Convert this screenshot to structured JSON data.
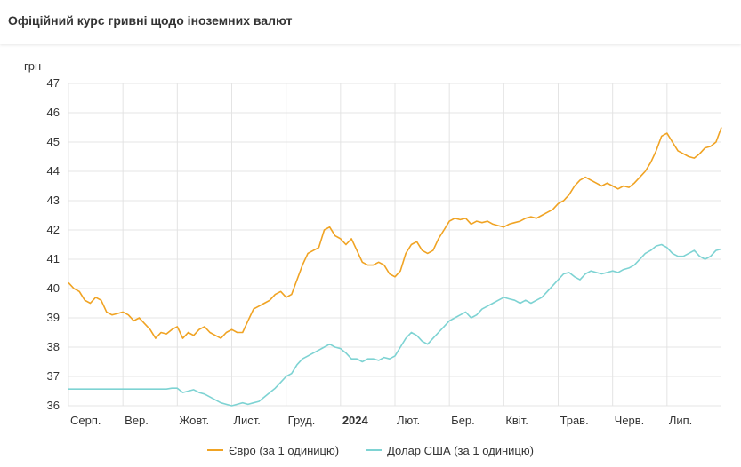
{
  "header": {
    "title": "Офіційний курс гривні щодо іноземних валют"
  },
  "colors": {
    "euro": "#F0A323",
    "usd": "#7ED3D3",
    "grid": "#e4e4e4"
  },
  "chart_data": {
    "type": "line",
    "title": "Офіційний курс гривні щодо іноземних валют",
    "ylabel": "грн",
    "xlabel": "",
    "ylim": [
      36,
      47
    ],
    "yticks": [
      36,
      37,
      38,
      39,
      40,
      41,
      42,
      43,
      44,
      45,
      46,
      47
    ],
    "xlim": [
      0,
      12
    ],
    "grid": true,
    "legend_position": "bottom",
    "month_labels": [
      {
        "x": 0,
        "label": "Серп.",
        "bold": false
      },
      {
        "x": 1,
        "label": "Вер.",
        "bold": false
      },
      {
        "x": 2,
        "label": "Жовт.",
        "bold": false
      },
      {
        "x": 3,
        "label": "Лист.",
        "bold": false
      },
      {
        "x": 4,
        "label": "Груд.",
        "bold": false
      },
      {
        "x": 5,
        "label": "2024",
        "bold": true
      },
      {
        "x": 6,
        "label": "Лют.",
        "bold": false
      },
      {
        "x": 7,
        "label": "Бер.",
        "bold": false
      },
      {
        "x": 8,
        "label": "Квіт.",
        "bold": false
      },
      {
        "x": 9,
        "label": "Трав.",
        "bold": false
      },
      {
        "x": 10,
        "label": "Черв.",
        "bold": false
      },
      {
        "x": 11,
        "label": "Лип.",
        "bold": false
      }
    ],
    "series": [
      {
        "name": "Євро (за 1 одиницю)",
        "key": "euro",
        "points": [
          [
            0.0,
            40.2
          ],
          [
            0.1,
            40.0
          ],
          [
            0.2,
            39.9
          ],
          [
            0.3,
            39.6
          ],
          [
            0.4,
            39.5
          ],
          [
            0.5,
            39.7
          ],
          [
            0.6,
            39.6
          ],
          [
            0.7,
            39.2
          ],
          [
            0.8,
            39.1
          ],
          [
            0.9,
            39.15
          ],
          [
            1.0,
            39.2
          ],
          [
            1.1,
            39.1
          ],
          [
            1.2,
            38.9
          ],
          [
            1.3,
            39.0
          ],
          [
            1.4,
            38.8
          ],
          [
            1.5,
            38.6
          ],
          [
            1.6,
            38.3
          ],
          [
            1.7,
            38.5
          ],
          [
            1.8,
            38.45
          ],
          [
            1.9,
            38.6
          ],
          [
            2.0,
            38.7
          ],
          [
            2.1,
            38.3
          ],
          [
            2.2,
            38.5
          ],
          [
            2.3,
            38.4
          ],
          [
            2.4,
            38.6
          ],
          [
            2.5,
            38.7
          ],
          [
            2.6,
            38.5
          ],
          [
            2.7,
            38.4
          ],
          [
            2.8,
            38.3
          ],
          [
            2.9,
            38.5
          ],
          [
            3.0,
            38.6
          ],
          [
            3.1,
            38.5
          ],
          [
            3.2,
            38.5
          ],
          [
            3.3,
            38.9
          ],
          [
            3.4,
            39.3
          ],
          [
            3.5,
            39.4
          ],
          [
            3.6,
            39.5
          ],
          [
            3.7,
            39.6
          ],
          [
            3.8,
            39.8
          ],
          [
            3.9,
            39.9
          ],
          [
            4.0,
            39.7
          ],
          [
            4.1,
            39.8
          ],
          [
            4.2,
            40.3
          ],
          [
            4.3,
            40.8
          ],
          [
            4.4,
            41.2
          ],
          [
            4.5,
            41.3
          ],
          [
            4.6,
            41.4
          ],
          [
            4.7,
            42.0
          ],
          [
            4.8,
            42.1
          ],
          [
            4.9,
            41.8
          ],
          [
            5.0,
            41.7
          ],
          [
            5.1,
            41.5
          ],
          [
            5.2,
            41.7
          ],
          [
            5.3,
            41.3
          ],
          [
            5.4,
            40.9
          ],
          [
            5.5,
            40.8
          ],
          [
            5.6,
            40.8
          ],
          [
            5.7,
            40.9
          ],
          [
            5.8,
            40.8
          ],
          [
            5.9,
            40.5
          ],
          [
            6.0,
            40.4
          ],
          [
            6.1,
            40.6
          ],
          [
            6.2,
            41.2
          ],
          [
            6.3,
            41.5
          ],
          [
            6.4,
            41.6
          ],
          [
            6.5,
            41.3
          ],
          [
            6.6,
            41.2
          ],
          [
            6.7,
            41.3
          ],
          [
            6.8,
            41.7
          ],
          [
            6.9,
            42.0
          ],
          [
            7.0,
            42.3
          ],
          [
            7.1,
            42.4
          ],
          [
            7.2,
            42.35
          ],
          [
            7.3,
            42.4
          ],
          [
            7.4,
            42.2
          ],
          [
            7.5,
            42.3
          ],
          [
            7.6,
            42.25
          ],
          [
            7.7,
            42.3
          ],
          [
            7.8,
            42.2
          ],
          [
            7.9,
            42.15
          ],
          [
            8.0,
            42.1
          ],
          [
            8.1,
            42.2
          ],
          [
            8.2,
            42.25
          ],
          [
            8.3,
            42.3
          ],
          [
            8.4,
            42.4
          ],
          [
            8.5,
            42.45
          ],
          [
            8.6,
            42.4
          ],
          [
            8.7,
            42.5
          ],
          [
            8.8,
            42.6
          ],
          [
            8.9,
            42.7
          ],
          [
            9.0,
            42.9
          ],
          [
            9.1,
            43.0
          ],
          [
            9.2,
            43.2
          ],
          [
            9.3,
            43.5
          ],
          [
            9.4,
            43.7
          ],
          [
            9.5,
            43.8
          ],
          [
            9.6,
            43.7
          ],
          [
            9.7,
            43.6
          ],
          [
            9.8,
            43.5
          ],
          [
            9.9,
            43.6
          ],
          [
            10.0,
            43.5
          ],
          [
            10.1,
            43.4
          ],
          [
            10.2,
            43.5
          ],
          [
            10.3,
            43.45
          ],
          [
            10.4,
            43.6
          ],
          [
            10.5,
            43.8
          ],
          [
            10.6,
            44.0
          ],
          [
            10.7,
            44.3
          ],
          [
            10.8,
            44.7
          ],
          [
            10.9,
            45.2
          ],
          [
            11.0,
            45.3
          ],
          [
            11.1,
            45.0
          ],
          [
            11.2,
            44.7
          ],
          [
            11.3,
            44.6
          ],
          [
            11.4,
            44.5
          ],
          [
            11.5,
            44.45
          ],
          [
            11.6,
            44.6
          ],
          [
            11.7,
            44.8
          ],
          [
            11.8,
            44.85
          ],
          [
            11.9,
            45.0
          ],
          [
            12.0,
            45.5
          ]
        ]
      },
      {
        "name": "Долар США (за 1 одиницю)",
        "key": "usd",
        "points": [
          [
            0.0,
            36.57
          ],
          [
            0.5,
            36.57
          ],
          [
            1.0,
            36.57
          ],
          [
            1.5,
            36.57
          ],
          [
            1.8,
            36.57
          ],
          [
            1.9,
            36.6
          ],
          [
            2.0,
            36.6
          ],
          [
            2.1,
            36.45
          ],
          [
            2.2,
            36.5
          ],
          [
            2.3,
            36.55
          ],
          [
            2.4,
            36.45
          ],
          [
            2.5,
            36.4
          ],
          [
            2.6,
            36.3
          ],
          [
            2.7,
            36.2
          ],
          [
            2.8,
            36.1
          ],
          [
            2.9,
            36.05
          ],
          [
            3.0,
            36.0
          ],
          [
            3.1,
            36.05
          ],
          [
            3.2,
            36.1
          ],
          [
            3.3,
            36.05
          ],
          [
            3.4,
            36.1
          ],
          [
            3.5,
            36.15
          ],
          [
            3.6,
            36.3
          ],
          [
            3.7,
            36.45
          ],
          [
            3.8,
            36.6
          ],
          [
            3.9,
            36.8
          ],
          [
            4.0,
            37.0
          ],
          [
            4.1,
            37.1
          ],
          [
            4.2,
            37.4
          ],
          [
            4.3,
            37.6
          ],
          [
            4.4,
            37.7
          ],
          [
            4.5,
            37.8
          ],
          [
            4.6,
            37.9
          ],
          [
            4.7,
            38.0
          ],
          [
            4.8,
            38.1
          ],
          [
            4.9,
            38.0
          ],
          [
            5.0,
            37.95
          ],
          [
            5.1,
            37.8
          ],
          [
            5.2,
            37.6
          ],
          [
            5.3,
            37.6
          ],
          [
            5.4,
            37.5
          ],
          [
            5.5,
            37.6
          ],
          [
            5.6,
            37.6
          ],
          [
            5.7,
            37.55
          ],
          [
            5.8,
            37.65
          ],
          [
            5.9,
            37.6
          ],
          [
            6.0,
            37.7
          ],
          [
            6.1,
            38.0
          ],
          [
            6.2,
            38.3
          ],
          [
            6.3,
            38.5
          ],
          [
            6.4,
            38.4
          ],
          [
            6.5,
            38.2
          ],
          [
            6.6,
            38.1
          ],
          [
            6.7,
            38.3
          ],
          [
            6.8,
            38.5
          ],
          [
            6.9,
            38.7
          ],
          [
            7.0,
            38.9
          ],
          [
            7.1,
            39.0
          ],
          [
            7.2,
            39.1
          ],
          [
            7.3,
            39.2
          ],
          [
            7.4,
            39.0
          ],
          [
            7.5,
            39.1
          ],
          [
            7.6,
            39.3
          ],
          [
            7.7,
            39.4
          ],
          [
            7.8,
            39.5
          ],
          [
            7.9,
            39.6
          ],
          [
            8.0,
            39.7
          ],
          [
            8.1,
            39.65
          ],
          [
            8.2,
            39.6
          ],
          [
            8.3,
            39.5
          ],
          [
            8.4,
            39.6
          ],
          [
            8.5,
            39.5
          ],
          [
            8.6,
            39.6
          ],
          [
            8.7,
            39.7
          ],
          [
            8.8,
            39.9
          ],
          [
            8.9,
            40.1
          ],
          [
            9.0,
            40.3
          ],
          [
            9.1,
            40.5
          ],
          [
            9.2,
            40.55
          ],
          [
            9.3,
            40.4
          ],
          [
            9.4,
            40.3
          ],
          [
            9.5,
            40.5
          ],
          [
            9.6,
            40.6
          ],
          [
            9.7,
            40.55
          ],
          [
            9.8,
            40.5
          ],
          [
            9.9,
            40.55
          ],
          [
            10.0,
            40.6
          ],
          [
            10.1,
            40.55
          ],
          [
            10.2,
            40.65
          ],
          [
            10.3,
            40.7
          ],
          [
            10.4,
            40.8
          ],
          [
            10.5,
            41.0
          ],
          [
            10.6,
            41.2
          ],
          [
            10.7,
            41.3
          ],
          [
            10.8,
            41.45
          ],
          [
            10.9,
            41.5
          ],
          [
            11.0,
            41.4
          ],
          [
            11.1,
            41.2
          ],
          [
            11.2,
            41.1
          ],
          [
            11.3,
            41.1
          ],
          [
            11.4,
            41.2
          ],
          [
            11.5,
            41.3
          ],
          [
            11.6,
            41.1
          ],
          [
            11.7,
            41.0
          ],
          [
            11.8,
            41.1
          ],
          [
            11.9,
            41.3
          ],
          [
            12.0,
            41.35
          ]
        ]
      }
    ]
  }
}
